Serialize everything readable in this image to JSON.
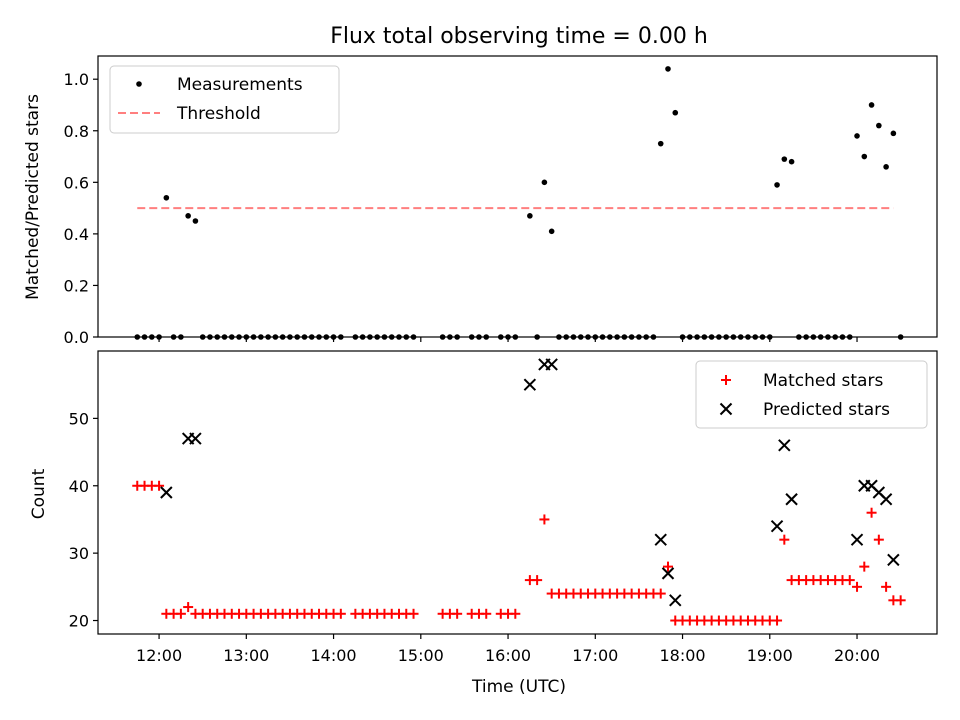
{
  "title": "Flux total observing time = 0.00 h",
  "colors": {
    "matched": "#ff0000",
    "predicted": "#000000",
    "measurement": "#000000",
    "threshold": "#ff7f7f"
  },
  "chart_data": [
    {
      "type": "scatter",
      "ylabel": "Matched/Predicted stars",
      "ylim": [
        0,
        1.09
      ],
      "yticks": [
        "0.0",
        "0.2",
        "0.4",
        "0.6",
        "0.8",
        "1.0"
      ],
      "legend": {
        "position": "top-left",
        "entries": [
          "Measurements",
          "Threshold"
        ]
      },
      "threshold": {
        "name": "Threshold",
        "value": 0.5,
        "x_start": "11:45",
        "x_end": "20:25"
      },
      "series": [
        {
          "name": "Measurements",
          "points": [
            [
              "11:45",
              0
            ],
            [
              "11:50",
              0
            ],
            [
              "11:55",
              0
            ],
            [
              "12:00",
              0
            ],
            [
              "12:05",
              0.54
            ],
            [
              "12:10",
              0
            ],
            [
              "12:15",
              0
            ],
            [
              "12:20",
              0.47
            ],
            [
              "12:25",
              0.45
            ],
            [
              "12:30",
              0
            ],
            [
              "12:35",
              0
            ],
            [
              "12:40",
              0
            ],
            [
              "12:45",
              0
            ],
            [
              "12:50",
              0
            ],
            [
              "12:55",
              0
            ],
            [
              "13:00",
              0
            ],
            [
              "13:05",
              0
            ],
            [
              "13:10",
              0
            ],
            [
              "13:15",
              0
            ],
            [
              "13:20",
              0
            ],
            [
              "13:25",
              0
            ],
            [
              "13:30",
              0
            ],
            [
              "13:35",
              0
            ],
            [
              "13:40",
              0
            ],
            [
              "13:45",
              0
            ],
            [
              "13:50",
              0
            ],
            [
              "13:55",
              0
            ],
            [
              "14:00",
              0
            ],
            [
              "14:05",
              0
            ],
            [
              "14:15",
              0
            ],
            [
              "14:20",
              0
            ],
            [
              "14:25",
              0
            ],
            [
              "14:30",
              0
            ],
            [
              "14:35",
              0
            ],
            [
              "14:40",
              0
            ],
            [
              "14:45",
              0
            ],
            [
              "14:50",
              0
            ],
            [
              "14:55",
              0
            ],
            [
              "15:15",
              0
            ],
            [
              "15:20",
              0
            ],
            [
              "15:25",
              0
            ],
            [
              "15:35",
              0
            ],
            [
              "15:40",
              0
            ],
            [
              "15:45",
              0
            ],
            [
              "15:55",
              0
            ],
            [
              "16:00",
              0
            ],
            [
              "16:05",
              0
            ],
            [
              "16:15",
              0.47
            ],
            [
              "16:20",
              0
            ],
            [
              "16:25",
              0.6
            ],
            [
              "16:30",
              0.41
            ],
            [
              "16:35",
              0
            ],
            [
              "16:40",
              0
            ],
            [
              "16:45",
              0
            ],
            [
              "16:50",
              0
            ],
            [
              "16:55",
              0
            ],
            [
              "17:00",
              0
            ],
            [
              "17:05",
              0
            ],
            [
              "17:10",
              0
            ],
            [
              "17:15",
              0
            ],
            [
              "17:20",
              0
            ],
            [
              "17:25",
              0
            ],
            [
              "17:30",
              0
            ],
            [
              "17:35",
              0
            ],
            [
              "17:40",
              0
            ],
            [
              "17:45",
              0.75
            ],
            [
              "17:50",
              1.04
            ],
            [
              "17:55",
              0.87
            ],
            [
              "18:00",
              0
            ],
            [
              "18:05",
              0
            ],
            [
              "18:10",
              0
            ],
            [
              "18:15",
              0
            ],
            [
              "18:20",
              0
            ],
            [
              "18:25",
              0
            ],
            [
              "18:30",
              0
            ],
            [
              "18:35",
              0
            ],
            [
              "18:40",
              0
            ],
            [
              "18:45",
              0
            ],
            [
              "18:50",
              0
            ],
            [
              "18:55",
              0
            ],
            [
              "19:00",
              0
            ],
            [
              "19:05",
              0.59
            ],
            [
              "19:10",
              0.69
            ],
            [
              "19:15",
              0.68
            ],
            [
              "19:20",
              0
            ],
            [
              "19:25",
              0
            ],
            [
              "19:30",
              0
            ],
            [
              "19:35",
              0
            ],
            [
              "19:40",
              0
            ],
            [
              "19:45",
              0
            ],
            [
              "19:50",
              0
            ],
            [
              "19:55",
              0
            ],
            [
              "20:00",
              0.78
            ],
            [
              "20:05",
              0.7
            ],
            [
              "20:10",
              0.9
            ],
            [
              "20:15",
              0.82
            ],
            [
              "20:20",
              0.66
            ],
            [
              "20:25",
              0.79
            ],
            [
              "20:30",
              0
            ]
          ]
        }
      ]
    },
    {
      "type": "scatter",
      "xlabel": "Time (UTC)",
      "ylabel": "Count",
      "xlim": [
        "11:18",
        "20:55"
      ],
      "ylim": [
        18,
        60
      ],
      "xticks": [
        "12:00",
        "13:00",
        "14:00",
        "15:00",
        "16:00",
        "17:00",
        "18:00",
        "19:00",
        "20:00"
      ],
      "yticks": [
        "20",
        "30",
        "40",
        "50"
      ],
      "legend": {
        "position": "top-right",
        "entries": [
          "Matched stars",
          "Predicted stars"
        ]
      },
      "series": [
        {
          "name": "Matched stars",
          "marker": "plus",
          "points": [
            [
              "11:45",
              40
            ],
            [
              "11:50",
              40
            ],
            [
              "11:55",
              40
            ],
            [
              "12:00",
              40
            ],
            [
              "12:05",
              21
            ],
            [
              "12:10",
              21
            ],
            [
              "12:15",
              21
            ],
            [
              "12:20",
              22
            ],
            [
              "12:25",
              21
            ],
            [
              "12:30",
              21
            ],
            [
              "12:35",
              21
            ],
            [
              "12:40",
              21
            ],
            [
              "12:45",
              21
            ],
            [
              "12:50",
              21
            ],
            [
              "12:55",
              21
            ],
            [
              "13:00",
              21
            ],
            [
              "13:05",
              21
            ],
            [
              "13:10",
              21
            ],
            [
              "13:15",
              21
            ],
            [
              "13:20",
              21
            ],
            [
              "13:25",
              21
            ],
            [
              "13:30",
              21
            ],
            [
              "13:35",
              21
            ],
            [
              "13:40",
              21
            ],
            [
              "13:45",
              21
            ],
            [
              "13:50",
              21
            ],
            [
              "13:55",
              21
            ],
            [
              "14:00",
              21
            ],
            [
              "14:05",
              21
            ],
            [
              "14:15",
              21
            ],
            [
              "14:20",
              21
            ],
            [
              "14:25",
              21
            ],
            [
              "14:30",
              21
            ],
            [
              "14:35",
              21
            ],
            [
              "14:40",
              21
            ],
            [
              "14:45",
              21
            ],
            [
              "14:50",
              21
            ],
            [
              "14:55",
              21
            ],
            [
              "15:15",
              21
            ],
            [
              "15:20",
              21
            ],
            [
              "15:25",
              21
            ],
            [
              "15:35",
              21
            ],
            [
              "15:40",
              21
            ],
            [
              "15:45",
              21
            ],
            [
              "15:55",
              21
            ],
            [
              "16:00",
              21
            ],
            [
              "16:05",
              21
            ],
            [
              "16:15",
              26
            ],
            [
              "16:20",
              26
            ],
            [
              "16:25",
              35
            ],
            [
              "16:30",
              24
            ],
            [
              "16:35",
              24
            ],
            [
              "16:40",
              24
            ],
            [
              "16:45",
              24
            ],
            [
              "16:50",
              24
            ],
            [
              "16:55",
              24
            ],
            [
              "17:00",
              24
            ],
            [
              "17:05",
              24
            ],
            [
              "17:10",
              24
            ],
            [
              "17:15",
              24
            ],
            [
              "17:20",
              24
            ],
            [
              "17:25",
              24
            ],
            [
              "17:30",
              24
            ],
            [
              "17:35",
              24
            ],
            [
              "17:40",
              24
            ],
            [
              "17:45",
              24
            ],
            [
              "17:50",
              28
            ],
            [
              "17:55",
              20
            ],
            [
              "18:00",
              20
            ],
            [
              "18:05",
              20
            ],
            [
              "18:10",
              20
            ],
            [
              "18:15",
              20
            ],
            [
              "18:20",
              20
            ],
            [
              "18:25",
              20
            ],
            [
              "18:30",
              20
            ],
            [
              "18:35",
              20
            ],
            [
              "18:40",
              20
            ],
            [
              "18:45",
              20
            ],
            [
              "18:50",
              20
            ],
            [
              "18:55",
              20
            ],
            [
              "19:00",
              20
            ],
            [
              "19:05",
              20
            ],
            [
              "19:10",
              32
            ],
            [
              "19:15",
              26
            ],
            [
              "19:20",
              26
            ],
            [
              "19:25",
              26
            ],
            [
              "19:30",
              26
            ],
            [
              "19:35",
              26
            ],
            [
              "19:40",
              26
            ],
            [
              "19:45",
              26
            ],
            [
              "19:50",
              26
            ],
            [
              "19:55",
              26
            ],
            [
              "20:00",
              25
            ],
            [
              "20:05",
              28
            ],
            [
              "20:10",
              36
            ],
            [
              "20:15",
              32
            ],
            [
              "20:20",
              25
            ],
            [
              "20:25",
              23
            ],
            [
              "20:30",
              23
            ]
          ]
        },
        {
          "name": "Predicted stars",
          "marker": "x",
          "points": [
            [
              "12:05",
              39
            ],
            [
              "12:20",
              47
            ],
            [
              "12:25",
              47
            ],
            [
              "16:15",
              55
            ],
            [
              "16:25",
              58
            ],
            [
              "16:30",
              58
            ],
            [
              "17:45",
              32
            ],
            [
              "17:50",
              27
            ],
            [
              "17:55",
              23
            ],
            [
              "19:05",
              34
            ],
            [
              "19:10",
              46
            ],
            [
              "19:15",
              38
            ],
            [
              "20:00",
              32
            ],
            [
              "20:05",
              40
            ],
            [
              "20:10",
              40
            ],
            [
              "20:15",
              39
            ],
            [
              "20:20",
              38
            ],
            [
              "20:25",
              29
            ]
          ]
        }
      ]
    }
  ]
}
